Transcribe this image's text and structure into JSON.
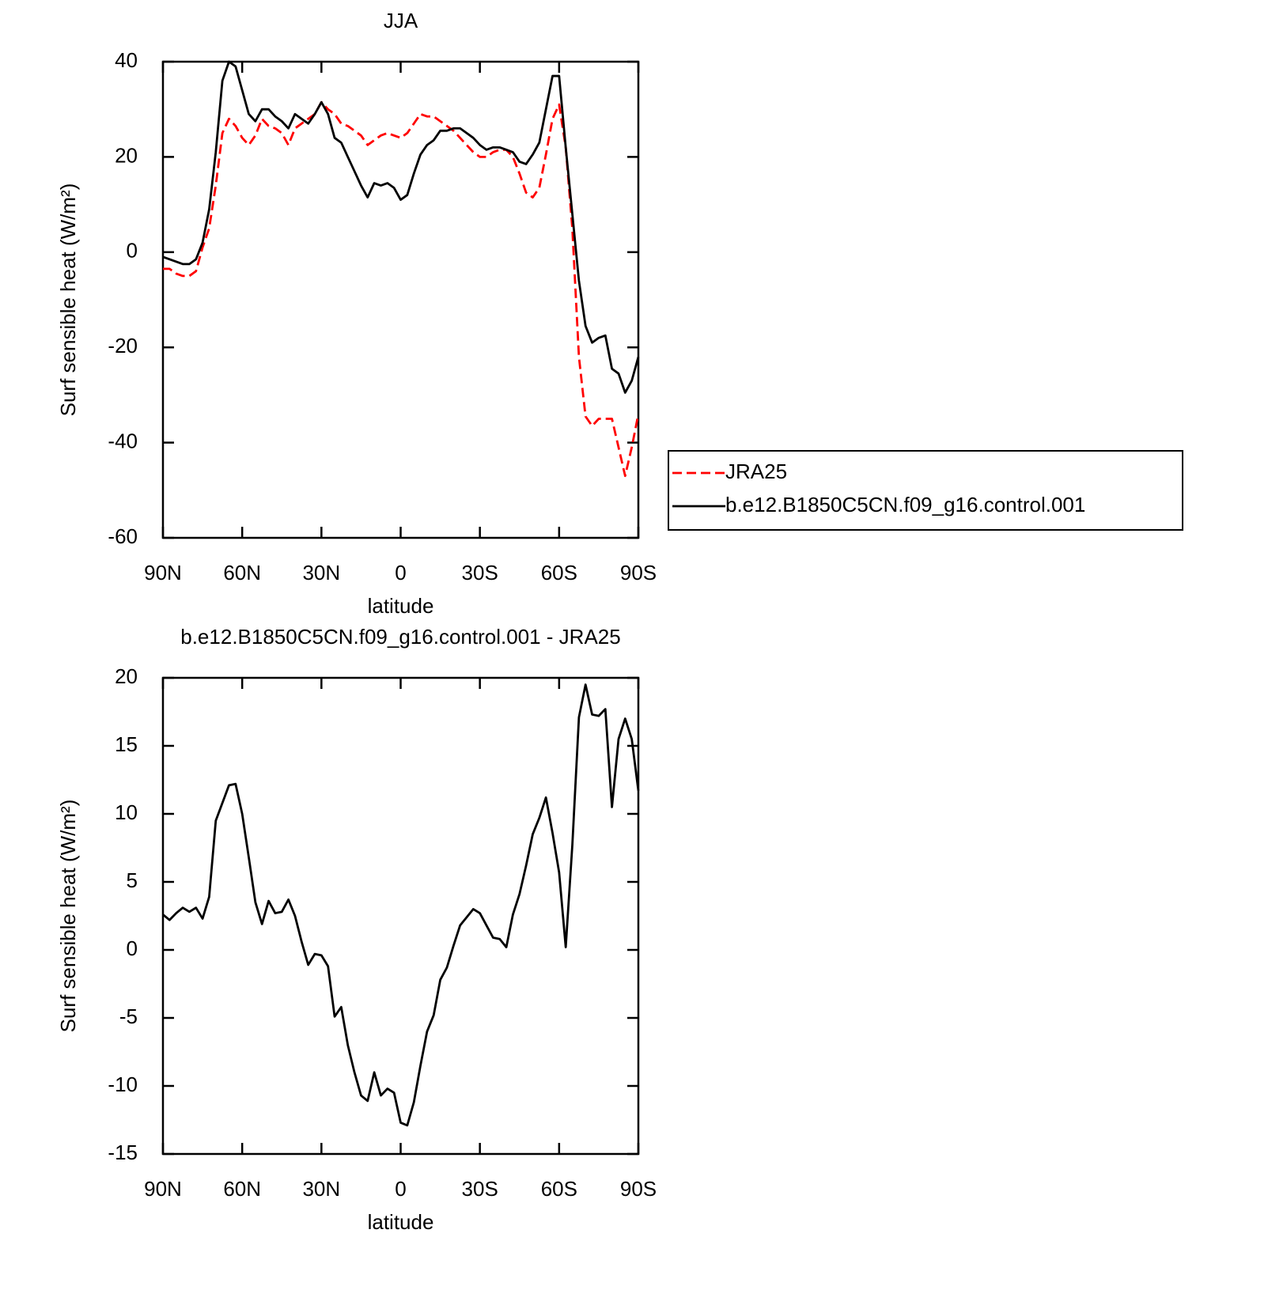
{
  "chart_data": [
    {
      "type": "line",
      "title": "JJA",
      "xlabel": "latitude",
      "ylabel": "Surf sensible heat (W/m²)",
      "x": [
        90,
        87.5,
        85,
        82.5,
        80,
        77.5,
        75,
        72.5,
        70,
        67.5,
        65,
        62.5,
        60,
        57.5,
        55,
        52.5,
        50,
        47.5,
        45,
        42.5,
        40,
        37.5,
        35,
        32.5,
        30,
        27.5,
        25,
        22.5,
        20,
        17.5,
        15,
        12.5,
        10,
        7.5,
        5,
        2.5,
        0,
        -2.5,
        -5,
        -7.5,
        -10,
        -12.5,
        -15,
        -17.5,
        -20,
        -22.5,
        -25,
        -27.5,
        -30,
        -32.5,
        -35,
        -37.5,
        -40,
        -42.5,
        -45,
        -47.5,
        -50,
        -52.5,
        -55,
        -57.5,
        -60,
        -62.5,
        -65,
        -67.5,
        -70,
        -72.5,
        -75,
        -77.5,
        -80,
        -82.5,
        -85,
        -87.5,
        -90
      ],
      "xlim": [
        90,
        -90
      ],
      "xticks": [
        {
          "value": 90,
          "label": "90N"
        },
        {
          "value": 60,
          "label": "60N"
        },
        {
          "value": 30,
          "label": "30N"
        },
        0,
        {
          "value": -30,
          "label": "30S"
        },
        {
          "value": -60,
          "label": "60S"
        },
        {
          "value": -90,
          "label": "90S"
        }
      ],
      "ylim": [
        -60,
        40
      ],
      "yticks": [
        -60,
        -40,
        -20,
        0,
        20,
        40
      ],
      "legend": "right",
      "series": [
        {
          "name": "JRA25",
          "color": "#ff0000",
          "linestyle": "dashed",
          "values": [
            -3.5,
            -3.5,
            -4.5,
            -5,
            -5,
            -4,
            1,
            5,
            14,
            25,
            28,
            26.5,
            24,
            22.5,
            24.5,
            28,
            26.5,
            26,
            25,
            22.5,
            26,
            27,
            28,
            29,
            31.5,
            30,
            29,
            27,
            26.5,
            25.5,
            24.5,
            22.5,
            23.5,
            24.5,
            25,
            24.5,
            24,
            25,
            27,
            29,
            28.5,
            28.5,
            27.5,
            26.5,
            25.5,
            24,
            22.5,
            21,
            20,
            20,
            21,
            21.5,
            21.5,
            20,
            16.5,
            12.5,
            11.5,
            13.5,
            20.5,
            28,
            31,
            22,
            5,
            -22,
            -34.5,
            -36.5,
            -35,
            -35,
            -35,
            -41,
            -47,
            -41,
            -34
          ]
        },
        {
          "name": "b.e12.B1850C5CN.f09_g16.control.001",
          "color": "#000000",
          "linestyle": "solid",
          "values": [
            -1,
            -1.5,
            -2,
            -2.5,
            -2.5,
            -1.5,
            2,
            9,
            21,
            36,
            40,
            39,
            34,
            29,
            27.5,
            30,
            30,
            28.5,
            27.5,
            26,
            29,
            28,
            27,
            29,
            31.5,
            29,
            24,
            23,
            20,
            17,
            14,
            11.5,
            14.5,
            14,
            14.5,
            13.5,
            11,
            12,
            16.5,
            20.5,
            22.5,
            23.5,
            25.5,
            25.5,
            26,
            26,
            25,
            24,
            22.5,
            21.5,
            22,
            22,
            21.5,
            21,
            19,
            18.5,
            20.5,
            23,
            30,
            37,
            37,
            22,
            8,
            -6,
            -15.5,
            -19,
            -18,
            -17.5,
            -24.5,
            -25.5,
            -29.5,
            -27,
            -22
          ]
        }
      ]
    },
    {
      "type": "line",
      "title": "b.e12.B1850C5CN.f09_g16.control.001 - JRA25",
      "xlabel": "latitude",
      "ylabel": "Surf sensible heat (W/m²)",
      "x": [
        90,
        87.5,
        85,
        82.5,
        80,
        77.5,
        75,
        72.5,
        70,
        67.5,
        65,
        62.5,
        60,
        57.5,
        55,
        52.5,
        50,
        47.5,
        45,
        42.5,
        40,
        37.5,
        35,
        32.5,
        30,
        27.5,
        25,
        22.5,
        20,
        17.5,
        15,
        12.5,
        10,
        7.5,
        5,
        2.5,
        0,
        -2.5,
        -5,
        -7.5,
        -10,
        -12.5,
        -15,
        -17.5,
        -20,
        -22.5,
        -25,
        -27.5,
        -30,
        -32.5,
        -35,
        -37.5,
        -40,
        -42.5,
        -45,
        -47.5,
        -50,
        -52.5,
        -55,
        -57.5,
        -60,
        -62.5,
        -65,
        -67.5,
        -70,
        -72.5,
        -75,
        -77.5,
        -80,
        -82.5,
        -85,
        -87.5,
        -90
      ],
      "xlim": [
        90,
        -90
      ],
      "xticks": [
        {
          "value": 90,
          "label": "90N"
        },
        {
          "value": 60,
          "label": "60N"
        },
        {
          "value": 30,
          "label": "30N"
        },
        0,
        {
          "value": -30,
          "label": "30S"
        },
        {
          "value": -60,
          "label": "60S"
        },
        {
          "value": -90,
          "label": "90S"
        }
      ],
      "ylim": [
        -15,
        20
      ],
      "yticks": [
        -15,
        -10,
        -5,
        0,
        5,
        10,
        15,
        20
      ],
      "series": [
        {
          "color": "#000000",
          "linestyle": "solid",
          "values": [
            2.6,
            2.2,
            2.7,
            3.1,
            2.8,
            3.1,
            2.3,
            3.9,
            9.5,
            10.8,
            12.1,
            12.2,
            10,
            6.8,
            3.5,
            1.9,
            3.6,
            2.7,
            2.8,
            3.7,
            2.5,
            0.6,
            -1.1,
            -0.3,
            -0.4,
            -1.2,
            -4.9,
            -4.2,
            -7,
            -9,
            -10.7,
            -11.1,
            -9,
            -10.7,
            -10.2,
            -10.5,
            -12.7,
            -12.9,
            -11.2,
            -8.5,
            -6,
            -4.8,
            -2.2,
            -1.3,
            0.3,
            1.8,
            2.4,
            3,
            2.7,
            1.8,
            0.9,
            0.8,
            0.2,
            2.6,
            4.1,
            6.2,
            8.5,
            9.7,
            11.2,
            8.6,
            5.7,
            0.2,
            7.7,
            17.1,
            19.5,
            17.3,
            17.2,
            17.7,
            10.5,
            15.5,
            17,
            15.5,
            11.7
          ]
        }
      ]
    }
  ]
}
